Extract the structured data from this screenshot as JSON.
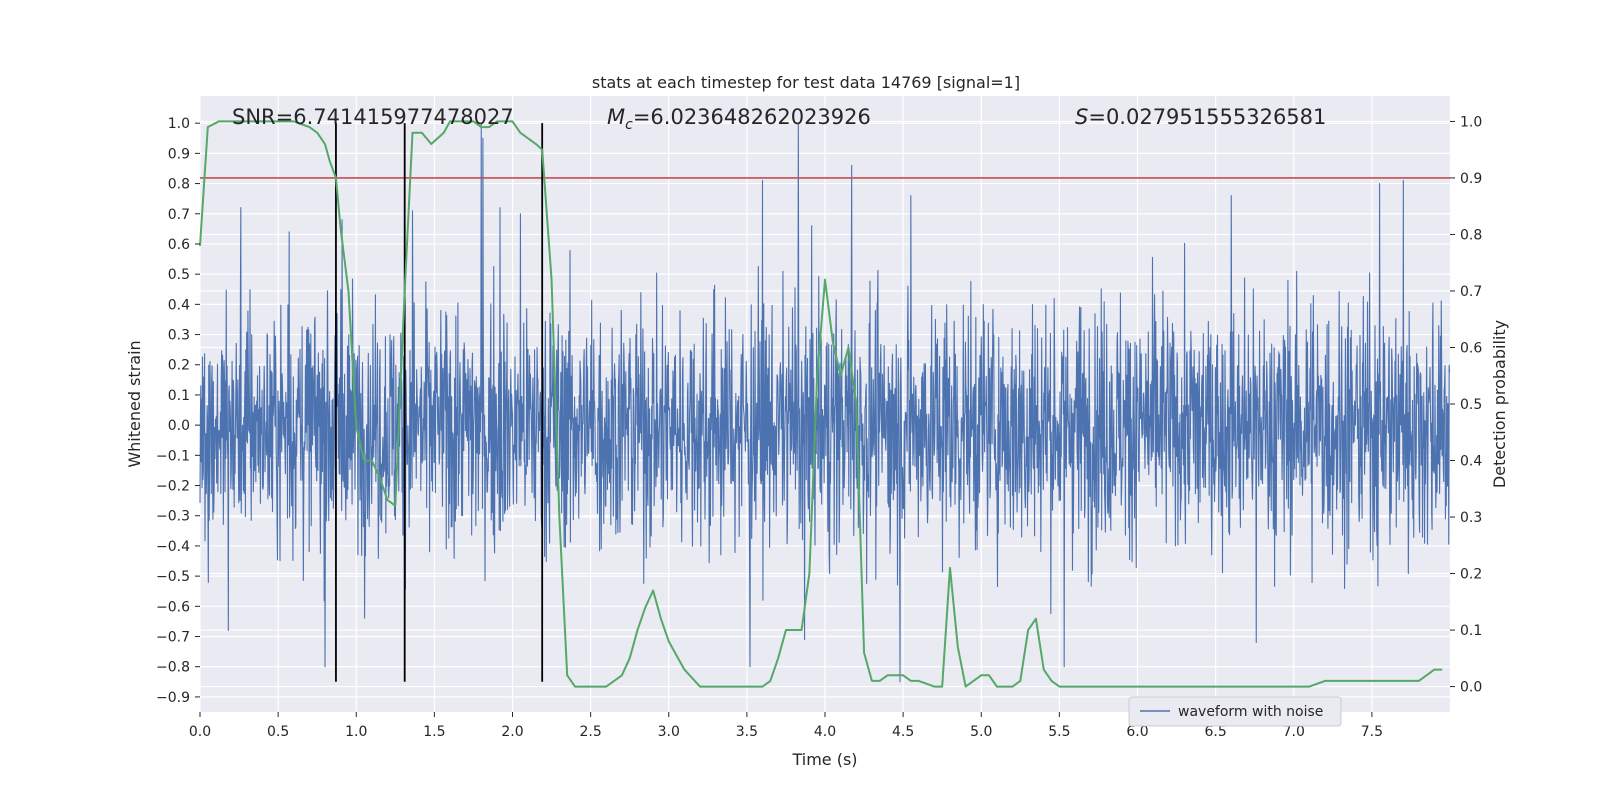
{
  "chart_data": {
    "type": "line",
    "title": "stats at each timestep for test data 14769 [signal=1]",
    "xlabel": "Time (s)",
    "ylabel": "Whitened strain",
    "y2label": "Detection probability",
    "xlim": [
      0.0,
      8.0
    ],
    "ylim": [
      -0.95,
      1.09
    ],
    "y2lim": [
      -0.045,
      1.045
    ],
    "xticks": [
      "0.0",
      "0.5",
      "1.0",
      "1.5",
      "2.0",
      "2.5",
      "3.0",
      "3.5",
      "4.0",
      "4.5",
      "5.0",
      "5.5",
      "6.0",
      "6.5",
      "7.0",
      "7.5"
    ],
    "yticks": [
      "1.0",
      "0.9",
      "0.8",
      "0.7",
      "0.6",
      "0.5",
      "0.4",
      "0.3",
      "0.2",
      "0.1",
      "0.0",
      "-0.1",
      "-0.2",
      "-0.3",
      "-0.4",
      "-0.5",
      "-0.6",
      "-0.7",
      "-0.8",
      "-0.9"
    ],
    "y2ticks": [
      "1.0",
      "0.9",
      "0.8",
      "0.7",
      "0.6",
      "0.5",
      "0.4",
      "0.3",
      "0.2",
      "0.1",
      "0.0"
    ],
    "grid": true,
    "legend": {
      "placement": "lower-center-right",
      "entries": [
        "waveform with noise"
      ]
    },
    "annotations": {
      "snr": "SNR=6.741415977478027",
      "mc_symbol": "M",
      "mc_sub": "c",
      "mc_value": "=6.023648262023926",
      "s_symbol": "S",
      "s_value": "=0.027951555326581"
    },
    "threshold": {
      "axis": "y2",
      "value": 0.9,
      "color": "#c44e52"
    },
    "vlines": [
      0.87,
      1.31,
      2.19
    ],
    "vline_range": [
      -0.85,
      1.0
    ],
    "series": [
      {
        "name": "waveform with noise",
        "axis": "y",
        "color": "#4c72b0",
        "description": "whitened strain noise, approx. envelope +/-0.45 with spikes up to 1.0 and down to -0.85",
        "spikes_up": [
          [
            0.26,
            0.72
          ],
          [
            0.57,
            0.64
          ],
          [
            0.91,
            0.68
          ],
          [
            1.36,
            0.71
          ],
          [
            1.8,
            1.0
          ],
          [
            1.81,
            0.95
          ],
          [
            1.92,
            0.72
          ],
          [
            2.05,
            0.7
          ],
          [
            3.6,
            0.81
          ],
          [
            3.83,
            1.0
          ],
          [
            4.17,
            0.86
          ],
          [
            4.55,
            0.76
          ],
          [
            6.6,
            0.76
          ],
          [
            7.55,
            0.8
          ],
          [
            7.7,
            0.81
          ]
        ],
        "spikes_down": [
          [
            0.18,
            -0.68
          ],
          [
            0.8,
            -0.8
          ],
          [
            1.31,
            -0.66
          ],
          [
            3.52,
            -0.8
          ],
          [
            3.87,
            -0.71
          ],
          [
            4.48,
            -0.85
          ],
          [
            5.53,
            -0.8
          ],
          [
            6.76,
            -0.72
          ]
        ]
      },
      {
        "name": "detection probability",
        "axis": "y2",
        "color": "#55a868",
        "x": [
          0.0,
          0.05,
          0.12,
          0.2,
          0.3,
          0.4,
          0.5,
          0.6,
          0.7,
          0.75,
          0.8,
          0.83,
          0.87,
          0.9,
          0.95,
          1.0,
          1.05,
          1.1,
          1.15,
          1.2,
          1.25,
          1.31,
          1.36,
          1.42,
          1.48,
          1.52,
          1.56,
          1.6,
          1.65,
          1.7,
          1.75,
          1.8,
          1.85,
          1.9,
          1.95,
          2.0,
          2.05,
          2.1,
          2.15,
          2.19,
          2.25,
          2.3,
          2.35,
          2.4,
          2.45,
          2.5,
          2.6,
          2.7,
          2.75,
          2.8,
          2.85,
          2.9,
          2.95,
          3.0,
          3.1,
          3.2,
          3.3,
          3.45,
          3.55,
          3.6,
          3.65,
          3.7,
          3.75,
          3.8,
          3.85,
          3.9,
          3.95,
          4.0,
          4.05,
          4.1,
          4.15,
          4.2,
          4.25,
          4.3,
          4.35,
          4.4,
          4.45,
          4.5,
          4.55,
          4.6,
          4.7,
          4.75,
          4.8,
          4.85,
          4.9,
          4.95,
          5.0,
          5.05,
          5.1,
          5.15,
          5.2,
          5.25,
          5.3,
          5.35,
          5.4,
          5.45,
          5.5,
          5.6,
          5.7,
          5.8,
          6.0,
          6.2,
          6.4,
          6.6,
          6.8,
          7.0,
          7.1,
          7.2,
          7.3,
          7.4,
          7.5,
          7.6,
          7.7,
          7.8,
          7.85,
          7.9,
          7.95
        ],
        "y": [
          0.78,
          0.99,
          1.0,
          1.0,
          1.0,
          1.0,
          1.0,
          1.0,
          0.99,
          0.98,
          0.96,
          0.93,
          0.9,
          0.81,
          0.7,
          0.46,
          0.4,
          0.4,
          0.37,
          0.33,
          0.32,
          0.7,
          0.98,
          0.98,
          0.96,
          0.97,
          0.98,
          1.0,
          1.0,
          1.0,
          1.0,
          0.99,
          0.99,
          1.0,
          1.0,
          1.0,
          0.98,
          0.97,
          0.96,
          0.95,
          0.72,
          0.3,
          0.02,
          0.0,
          0.0,
          0.0,
          0.0,
          0.02,
          0.05,
          0.1,
          0.14,
          0.17,
          0.12,
          0.08,
          0.03,
          0.0,
          0.0,
          0.0,
          0.0,
          0.0,
          0.01,
          0.05,
          0.1,
          0.1,
          0.1,
          0.2,
          0.55,
          0.72,
          0.61,
          0.55,
          0.6,
          0.5,
          0.06,
          0.01,
          0.01,
          0.02,
          0.02,
          0.02,
          0.01,
          0.01,
          0.0,
          0.0,
          0.21,
          0.07,
          0.0,
          0.01,
          0.02,
          0.02,
          0.0,
          0.0,
          0.0,
          0.01,
          0.1,
          0.12,
          0.03,
          0.01,
          0.0,
          0.0,
          0.0,
          0.0,
          0.0,
          0.0,
          0.0,
          0.0,
          0.0,
          0.0,
          0.0,
          0.01,
          0.01,
          0.01,
          0.01,
          0.01,
          0.01,
          0.01,
          0.02,
          0.03,
          0.03
        ]
      }
    ]
  }
}
